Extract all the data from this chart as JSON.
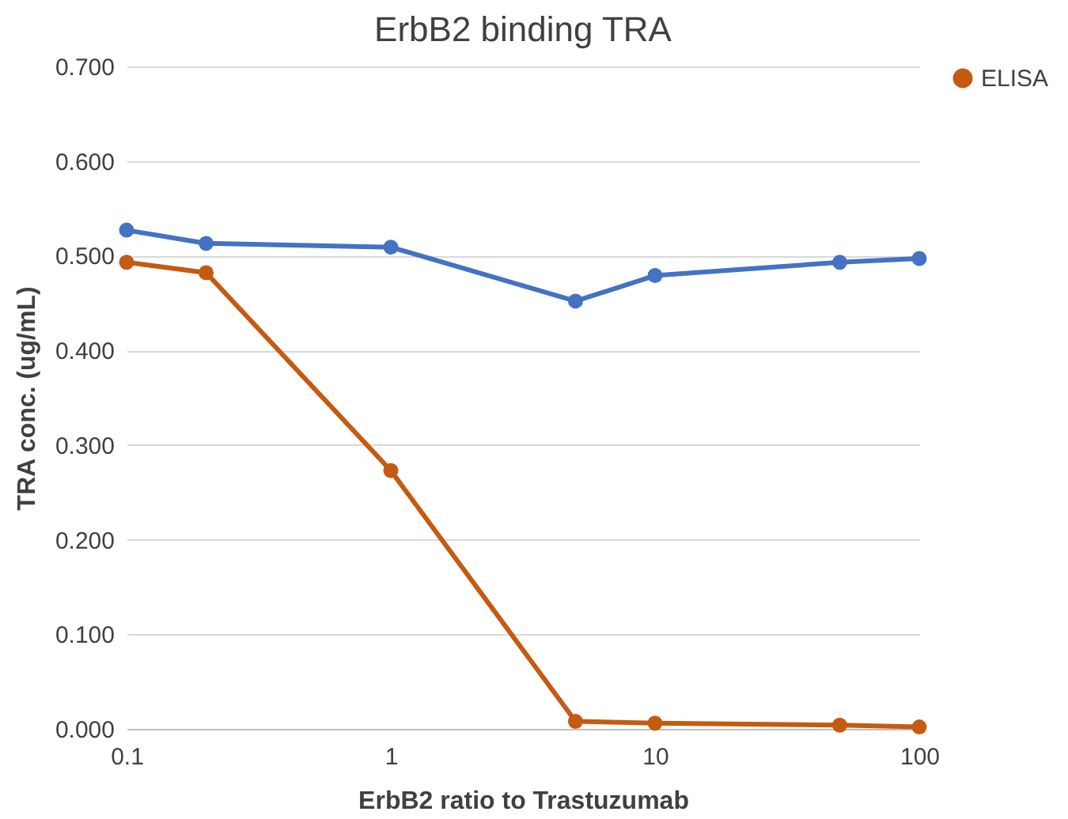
{
  "chart_data": {
    "type": "line",
    "title": "ErbB2 binding TRA",
    "xlabel": "ErbB2 ratio to Trastuzumab",
    "ylabel": "TRA conc. (ug/mL)",
    "x": [
      0.1,
      0.2,
      1,
      5,
      10,
      50,
      100
    ],
    "series": [
      {
        "color": "#4472c4",
        "values": [
          0.527,
          0.513,
          0.509,
          0.452,
          0.479,
          0.493,
          0.497
        ]
      },
      {
        "name": "ELISA",
        "color": "#c55a11",
        "values": [
          0.493,
          0.482,
          0.273,
          0.008,
          0.006,
          0.004,
          0.002
        ]
      }
    ],
    "log": "x",
    "xlim": [
      0.1,
      100
    ],
    "xticks": [
      0.1,
      1,
      10,
      100
    ],
    "ylim": [
      0,
      0.7
    ],
    "yticks": [
      {
        "value": 0,
        "label": "0.000"
      },
      {
        "value": 0.1,
        "label": "0.100"
      },
      {
        "value": 0.2,
        "label": "0.200"
      },
      {
        "value": 0.3,
        "label": "0.300"
      },
      {
        "value": 0.4,
        "label": "0.400"
      },
      {
        "value": 0.5,
        "label": "0.500"
      },
      {
        "value": 0.6,
        "label": "0.600"
      },
      {
        "value": 0.7,
        "label": "0.700"
      }
    ],
    "grid": "y",
    "legend": "right",
    "marker": "circle",
    "line_style": "solid"
  }
}
